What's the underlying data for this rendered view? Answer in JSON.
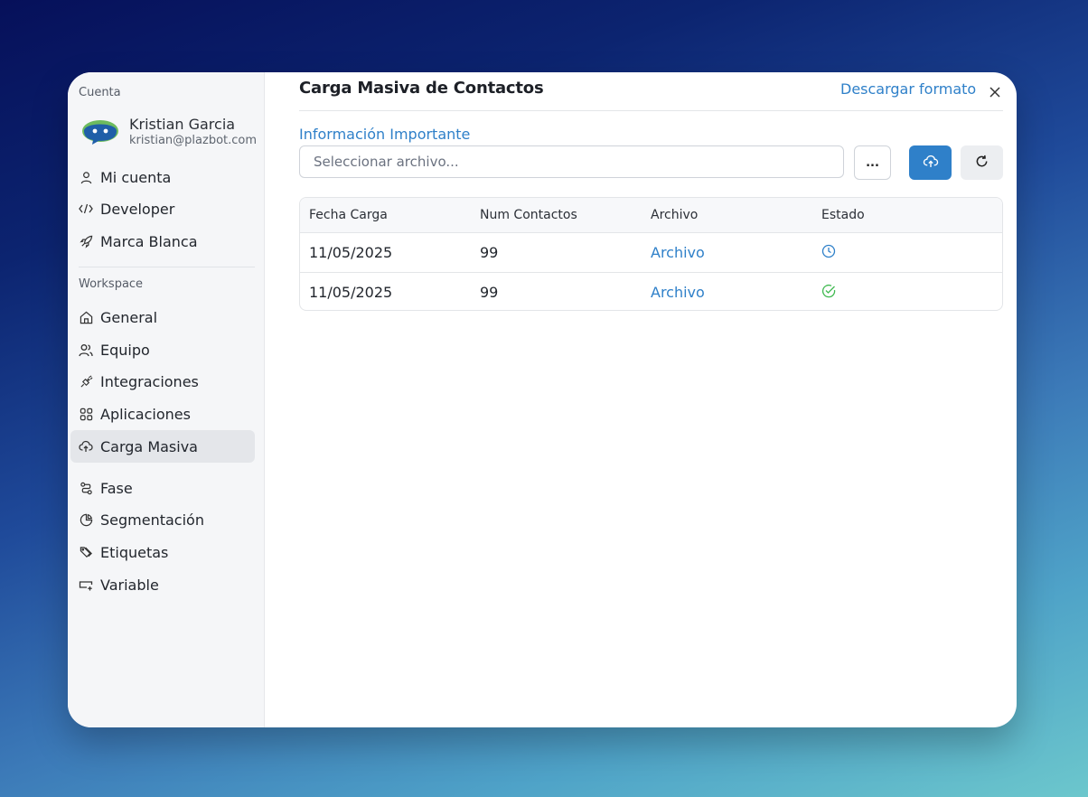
{
  "sidebar": {
    "account_label": "Cuenta",
    "user": {
      "name": "Kristian Garcia",
      "email": "kristian@plazbot.com"
    },
    "account_items": [
      {
        "label": "Mi cuenta",
        "icon": "user-icon"
      },
      {
        "label": "Developer",
        "icon": "code-icon"
      },
      {
        "label": "Marca Blanca",
        "icon": "rocket-icon"
      }
    ],
    "workspace_label": "Workspace",
    "workspace_items": [
      {
        "label": "General",
        "icon": "home-icon"
      },
      {
        "label": "Equipo",
        "icon": "users-icon"
      },
      {
        "label": "Integraciones",
        "icon": "plug-icon"
      },
      {
        "label": "Aplicaciones",
        "icon": "grid-icon"
      },
      {
        "label": "Carga Masiva",
        "icon": "cloud-upload-icon",
        "active": true
      },
      {
        "label": "Fase",
        "icon": "route-icon"
      },
      {
        "label": "Segmentación",
        "icon": "pie-chart-icon"
      },
      {
        "label": "Etiquetas",
        "icon": "tags-icon"
      },
      {
        "label": "Variable",
        "icon": "variable-icon"
      }
    ]
  },
  "main": {
    "title": "Carga Masiva de Contactos",
    "download_link": "Descargar formato",
    "info_link": "Información Importante",
    "file_placeholder": "Seleccionar archivo...",
    "more_button": "...",
    "table": {
      "headers": [
        "Fecha Carga",
        "Num Contactos",
        "Archivo",
        "Estado"
      ],
      "rows": [
        {
          "date": "11/05/2025",
          "count": "99",
          "file": "Archivo",
          "status": "pending",
          "status_icon": "clock-icon",
          "status_color": "#2f80c9"
        },
        {
          "date": "11/05/2025",
          "count": "99",
          "file": "Archivo",
          "status": "completed",
          "status_icon": "check-circle-icon",
          "status_color": "#3fb950"
        }
      ]
    }
  },
  "colors": {
    "accent": "#2f80c9",
    "success": "#3fb950"
  }
}
